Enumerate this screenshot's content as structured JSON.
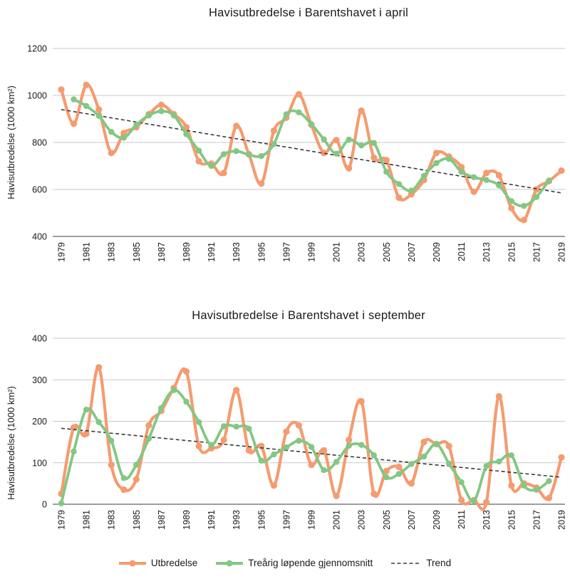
{
  "legend": {
    "items": [
      {
        "label": "Utbredelse",
        "color": "#F59B6F",
        "style": "line-marker"
      },
      {
        "label": "Treårig løpende gjennomsnitt",
        "color": "#83C784",
        "style": "line-marker"
      },
      {
        "label": "Trend",
        "color": "#3a3a3a",
        "style": "dashed"
      }
    ]
  },
  "colors": {
    "grid": "#c9c9c9",
    "axis": "#7d7d7d",
    "text": "#1a1a1a"
  },
  "chart_data": [
    {
      "type": "line",
      "title": "Havisutbredelse i Barentshavet i april",
      "ylabel": "Havisutbredelse (1000 km²)",
      "ylim": [
        400,
        1200
      ],
      "yticks": [
        1200,
        1000,
        800,
        600,
        400
      ],
      "xtick_step": 2,
      "grid": true,
      "legend_position": "bottom",
      "years": [
        1979,
        1980,
        1981,
        1982,
        1983,
        1984,
        1985,
        1986,
        1987,
        1988,
        1989,
        1990,
        1991,
        1992,
        1993,
        1994,
        1995,
        1996,
        1997,
        1998,
        1999,
        2000,
        2001,
        2002,
        2003,
        2004,
        2005,
        2006,
        2007,
        2008,
        2009,
        2010,
        2011,
        2012,
        2013,
        2014,
        2015,
        2016,
        2017,
        2018,
        2019
      ],
      "series": [
        {
          "id": "utbredelse",
          "name": "Utbredelse",
          "color": "#F59B6F",
          "values": [
            1025,
            880,
            1045,
            940,
            755,
            840,
            865,
            920,
            960,
            920,
            865,
            720,
            710,
            670,
            870,
            750,
            625,
            850,
            905,
            1005,
            875,
            755,
            810,
            690,
            935,
            735,
            725,
            565,
            580,
            640,
            755,
            740,
            695,
            590,
            670,
            660,
            520,
            470,
            600,
            635,
            680
          ]
        },
        {
          "id": "gjennomsnitt",
          "name": "Treårig løpende gjennomsnitt",
          "color": "#83C784",
          "values": [
            null,
            983,
            955,
            913,
            845,
            820,
            875,
            915,
            933,
            915,
            835,
            765,
            700,
            750,
            763,
            748,
            742,
            793,
            920,
            928,
            878,
            813,
            752,
            812,
            787,
            798,
            675,
            623,
            595,
            658,
            712,
            730,
            675,
            652,
            640,
            617,
            550,
            530,
            568,
            638,
            null
          ]
        }
      ],
      "trend": {
        "label": "Trend",
        "color": "#3a3a3a",
        "start": 940,
        "end": 585
      }
    },
    {
      "type": "line",
      "title": "Havisutbredelse i Barentshavet i september",
      "ylabel": "Havisutbredelse (1000 km²)",
      "ylim": [
        0,
        400
      ],
      "yticks": [
        400,
        300,
        200,
        100,
        0
      ],
      "xtick_step": 2,
      "grid": true,
      "legend_position": "bottom",
      "years": [
        1979,
        1980,
        1981,
        1982,
        1983,
        1984,
        1985,
        1986,
        1987,
        1988,
        1989,
        1990,
        1991,
        1992,
        1993,
        1994,
        1995,
        1996,
        1997,
        1998,
        1999,
        2000,
        2001,
        2002,
        2003,
        2004,
        2005,
        2006,
        2007,
        2008,
        2009,
        2010,
        2011,
        2012,
        2013,
        2014,
        2015,
        2016,
        2017,
        2018,
        2019
      ],
      "series": [
        {
          "id": "utbredelse",
          "name": "Utbredelse",
          "color": "#F59B6F",
          "values": [
            25,
            185,
            170,
            330,
            95,
            35,
            60,
            190,
            225,
            280,
            320,
            140,
            135,
            155,
            275,
            130,
            140,
            45,
            175,
            190,
            95,
            130,
            20,
            155,
            248,
            25,
            80,
            90,
            50,
            150,
            145,
            140,
            10,
            10,
            5,
            260,
            45,
            50,
            40,
            15,
            113
          ]
        },
        {
          "id": "gjennomsnitt",
          "name": "Treårig løpende gjennomsnitt",
          "color": "#83C784",
          "values": [
            2,
            127,
            228,
            198,
            153,
            63,
            95,
            158,
            232,
            275,
            247,
            198,
            143,
            188,
            187,
            182,
            105,
            120,
            137,
            153,
            138,
            82,
            102,
            141,
            143,
            118,
            65,
            73,
            97,
            115,
            145,
            98,
            53,
            8,
            92,
            103,
            118,
            45,
            35,
            56,
            null
          ]
        }
      ],
      "trend": {
        "label": "Trend",
        "color": "#3a3a3a",
        "start": 183,
        "end": 65
      }
    }
  ]
}
